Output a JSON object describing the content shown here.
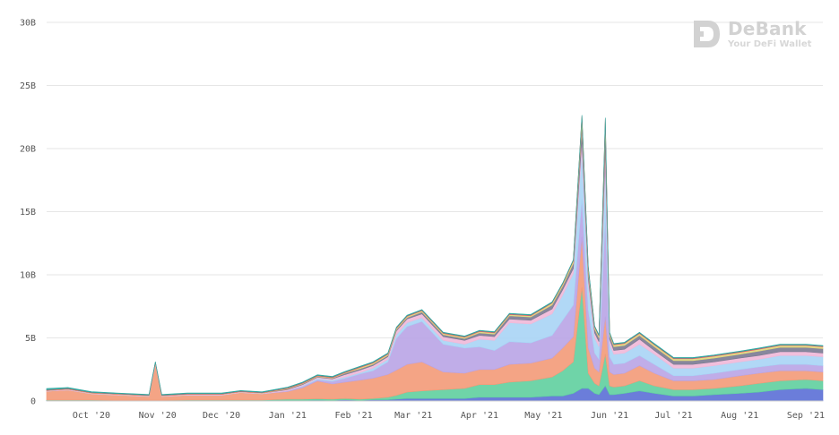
{
  "brand": {
    "name": "DeBank",
    "tagline": "Your DeFi Wallet"
  },
  "colors": {
    "grid": "#e6e6e6",
    "axis_text": "#555555",
    "watermark": "#d2d2d2"
  },
  "chart_data": {
    "type": "area",
    "stacked": true,
    "title": "",
    "xlabel": "",
    "ylabel": "",
    "ylim": [
      0,
      30
    ],
    "y_unit": "B",
    "y_ticks": [
      "0",
      "5B",
      "10B",
      "15B",
      "20B",
      "25B",
      "30B"
    ],
    "x_ticks": [
      "Oct '20",
      "Nov '20",
      "Dec '20",
      "Jan '21",
      "Feb '21",
      "Mar '21",
      "Apr '21",
      "May '21",
      "Jun '21",
      "Jul '21",
      "Aug '21",
      "Sep '21"
    ],
    "xlim": [
      "2020-09-10",
      "2021-09-09"
    ],
    "grid": true,
    "legend": "none",
    "x": [
      "2020-09-10",
      "2020-09-20",
      "2020-10-01",
      "2020-10-15",
      "2020-10-28",
      "2020-10-31",
      "2020-11-03",
      "2020-11-15",
      "2020-12-01",
      "2020-12-10",
      "2020-12-20",
      "2021-01-01",
      "2021-01-08",
      "2021-01-15",
      "2021-01-22",
      "2021-01-28",
      "2021-02-04",
      "2021-02-10",
      "2021-02-17",
      "2021-02-21",
      "2021-02-26",
      "2021-03-05",
      "2021-03-15",
      "2021-03-25",
      "2021-04-01",
      "2021-04-08",
      "2021-04-15",
      "2021-04-25",
      "2021-05-05",
      "2021-05-10",
      "2021-05-15",
      "2021-05-19",
      "2021-05-22",
      "2021-05-25",
      "2021-05-27",
      "2021-05-30",
      "2021-06-01",
      "2021-06-03",
      "2021-06-08",
      "2021-06-15",
      "2021-06-22",
      "2021-07-01",
      "2021-07-10",
      "2021-07-20",
      "2021-08-01",
      "2021-08-10",
      "2021-08-20",
      "2021-09-01",
      "2021-09-09"
    ],
    "series": [
      {
        "color": "#5b6fd6",
        "values": [
          0.02,
          0.02,
          0.02,
          0.02,
          0.02,
          0.02,
          0.02,
          0.02,
          0.02,
          0.02,
          0.02,
          0.05,
          0.05,
          0.08,
          0.05,
          0.1,
          0.05,
          0.1,
          0.1,
          0.15,
          0.2,
          0.2,
          0.2,
          0.2,
          0.3,
          0.3,
          0.3,
          0.3,
          0.4,
          0.4,
          0.6,
          1.0,
          1.0,
          0.6,
          0.5,
          1.2,
          0.5,
          0.5,
          0.6,
          0.8,
          0.6,
          0.4,
          0.4,
          0.5,
          0.6,
          0.7,
          0.9,
          1.0,
          0.9
        ]
      },
      {
        "color": "#5fcf9f",
        "values": [
          0.05,
          0.05,
          0.05,
          0.04,
          0.04,
          0.04,
          0.04,
          0.05,
          0.05,
          0.05,
          0.05,
          0.1,
          0.1,
          0.1,
          0.1,
          0.1,
          0.1,
          0.1,
          0.2,
          0.3,
          0.5,
          0.6,
          0.7,
          0.8,
          1.0,
          1.0,
          1.2,
          1.3,
          1.5,
          2.0,
          2.5,
          8.0,
          1.2,
          0.8,
          0.7,
          2.5,
          0.7,
          0.6,
          0.6,
          0.8,
          0.6,
          0.5,
          0.5,
          0.5,
          0.6,
          0.7,
          0.7,
          0.7,
          0.7
        ]
      },
      {
        "color": "#f39a78",
        "values": [
          0.7,
          0.8,
          0.5,
          0.4,
          0.3,
          2.9,
          0.3,
          0.4,
          0.4,
          0.6,
          0.5,
          0.6,
          0.9,
          1.4,
          1.2,
          1.3,
          1.5,
          1.6,
          1.8,
          2.0,
          2.2,
          2.3,
          1.4,
          1.2,
          1.2,
          1.2,
          1.4,
          1.4,
          1.5,
          1.8,
          2.0,
          4.0,
          2.0,
          1.2,
          1.1,
          3.0,
          1.1,
          1.0,
          1.0,
          1.2,
          1.0,
          0.7,
          0.7,
          0.7,
          0.8,
          0.8,
          0.8,
          0.7,
          0.7
        ]
      },
      {
        "color": "#b9a4e6",
        "values": [
          0.0,
          0.0,
          0.0,
          0.0,
          0.0,
          0.0,
          0.0,
          0.0,
          0.0,
          0.0,
          0.0,
          0.05,
          0.1,
          0.1,
          0.2,
          0.3,
          0.5,
          0.6,
          1.0,
          2.5,
          3.0,
          3.2,
          2.2,
          2.0,
          1.8,
          1.5,
          1.8,
          1.6,
          1.8,
          2.2,
          2.5,
          3.0,
          3.0,
          1.2,
          1.0,
          8.0,
          1.2,
          0.8,
          0.8,
          0.8,
          0.7,
          0.4,
          0.4,
          0.5,
          0.5,
          0.5,
          0.5,
          0.5,
          0.5
        ]
      },
      {
        "color": "#a8d4f5",
        "values": [
          0.0,
          0.0,
          0.0,
          0.0,
          0.0,
          0.0,
          0.0,
          0.0,
          0.0,
          0.0,
          0.0,
          0.0,
          0.05,
          0.1,
          0.1,
          0.1,
          0.1,
          0.2,
          0.2,
          0.3,
          0.3,
          0.3,
          0.3,
          0.3,
          0.6,
          0.8,
          1.5,
          1.5,
          1.7,
          2.0,
          2.5,
          4.0,
          2.0,
          1.2,
          1.0,
          4.0,
          1.0,
          0.8,
          0.8,
          0.9,
          0.8,
          0.6,
          0.6,
          0.6,
          0.6,
          0.6,
          0.7,
          0.7,
          0.7
        ]
      },
      {
        "color": "#f0b8d8",
        "values": [
          0.05,
          0.05,
          0.05,
          0.05,
          0.05,
          0.05,
          0.05,
          0.05,
          0.05,
          0.05,
          0.05,
          0.1,
          0.1,
          0.1,
          0.1,
          0.2,
          0.2,
          0.2,
          0.2,
          0.3,
          0.3,
          0.3,
          0.3,
          0.3,
          0.3,
          0.3,
          0.3,
          0.3,
          0.4,
          0.4,
          0.4,
          0.8,
          0.5,
          0.4,
          0.4,
          1.2,
          0.4,
          0.3,
          0.3,
          0.4,
          0.3,
          0.3,
          0.3,
          0.3,
          0.3,
          0.3,
          0.3,
          0.3,
          0.3
        ]
      },
      {
        "color": "#7a7a92",
        "values": [
          0.0,
          0.0,
          0.0,
          0.0,
          0.0,
          0.0,
          0.0,
          0.0,
          0.0,
          0.0,
          0.0,
          0.05,
          0.05,
          0.05,
          0.05,
          0.1,
          0.1,
          0.1,
          0.1,
          0.1,
          0.1,
          0.15,
          0.15,
          0.15,
          0.2,
          0.2,
          0.25,
          0.25,
          0.3,
          0.3,
          0.4,
          1.2,
          0.5,
          0.3,
          0.3,
          1.6,
          0.3,
          0.3,
          0.3,
          0.3,
          0.3,
          0.3,
          0.3,
          0.3,
          0.3,
          0.35,
          0.35,
          0.35,
          0.35
        ]
      },
      {
        "color": "#e2d67a",
        "values": [
          0.02,
          0.02,
          0.02,
          0.02,
          0.02,
          0.02,
          0.02,
          0.02,
          0.02,
          0.02,
          0.02,
          0.05,
          0.05,
          0.05,
          0.05,
          0.05,
          0.1,
          0.1,
          0.1,
          0.1,
          0.1,
          0.1,
          0.1,
          0.1,
          0.1,
          0.1,
          0.1,
          0.1,
          0.15,
          0.15,
          0.2,
          0.5,
          0.3,
          0.15,
          0.15,
          0.6,
          0.15,
          0.15,
          0.15,
          0.15,
          0.15,
          0.15,
          0.15,
          0.15,
          0.15,
          0.15,
          0.15,
          0.15,
          0.15
        ]
      },
      {
        "color": "#e05a6a",
        "values": [
          0.05,
          0.05,
          0.04,
          0.04,
          0.04,
          0.04,
          0.04,
          0.04,
          0.04,
          0.04,
          0.04,
          0.05,
          0.05,
          0.05,
          0.05,
          0.05,
          0.05,
          0.05,
          0.05,
          0.05,
          0.05,
          0.05,
          0.05,
          0.05,
          0.05,
          0.05,
          0.05,
          0.05,
          0.05,
          0.05,
          0.05,
          0.1,
          0.1,
          0.05,
          0.05,
          0.3,
          0.05,
          0.05,
          0.05,
          0.05,
          0.05,
          0.05,
          0.05,
          0.05,
          0.05,
          0.05,
          0.05,
          0.05,
          0.05
        ]
      },
      {
        "color": "#2ea8a0",
        "values": [
          0.1,
          0.08,
          0.06,
          0.05,
          0.05,
          0.05,
          0.05,
          0.05,
          0.05,
          0.05,
          0.05,
          0.05,
          0.05,
          0.05,
          0.05,
          0.05,
          0.05,
          0.05,
          0.05,
          0.05,
          0.05,
          0.05,
          0.05,
          0.05,
          0.05,
          0.05,
          0.05,
          0.05,
          0.05,
          0.05,
          0.05,
          0.05,
          0.05,
          0.05,
          0.05,
          0.05,
          0.05,
          0.05,
          0.05,
          0.05,
          0.05,
          0.05,
          0.05,
          0.05,
          0.05,
          0.05,
          0.05,
          0.05,
          0.05
        ]
      }
    ]
  }
}
